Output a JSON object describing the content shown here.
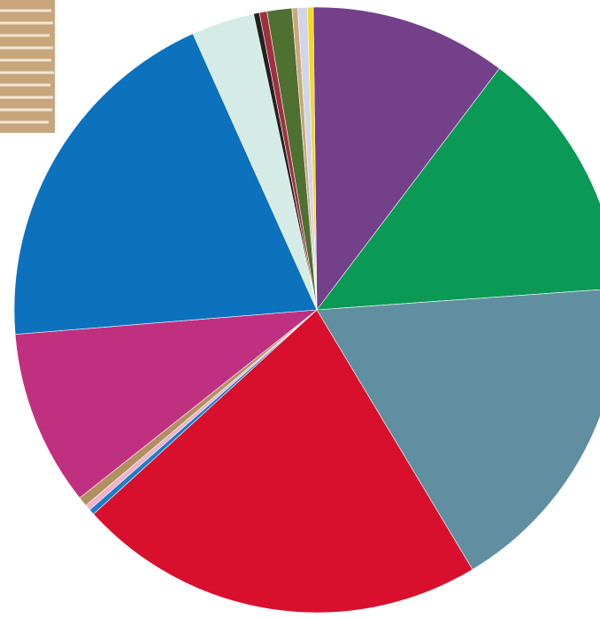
{
  "chart_data": {
    "type": "pie",
    "values": [
      10.3,
      13.3,
      17.2,
      21.4,
      0.3,
      0.3,
      0.5,
      9.2,
      19.2,
      3.3,
      0.3,
      0.4,
      1.3,
      0.3,
      0.5,
      0.3
    ],
    "colors": [
      "#74408a",
      "#0a9a55",
      "#5f8fa0",
      "#d8102e",
      "#1a7fc8",
      "#f0b0c8",
      "#b09060",
      "#c03080",
      "#0d72bd",
      "#d5ebe5",
      "#222222",
      "#a03040",
      "#4e7030",
      "#c8a878",
      "#d0d4ec",
      "#f5d820"
    ]
  }
}
